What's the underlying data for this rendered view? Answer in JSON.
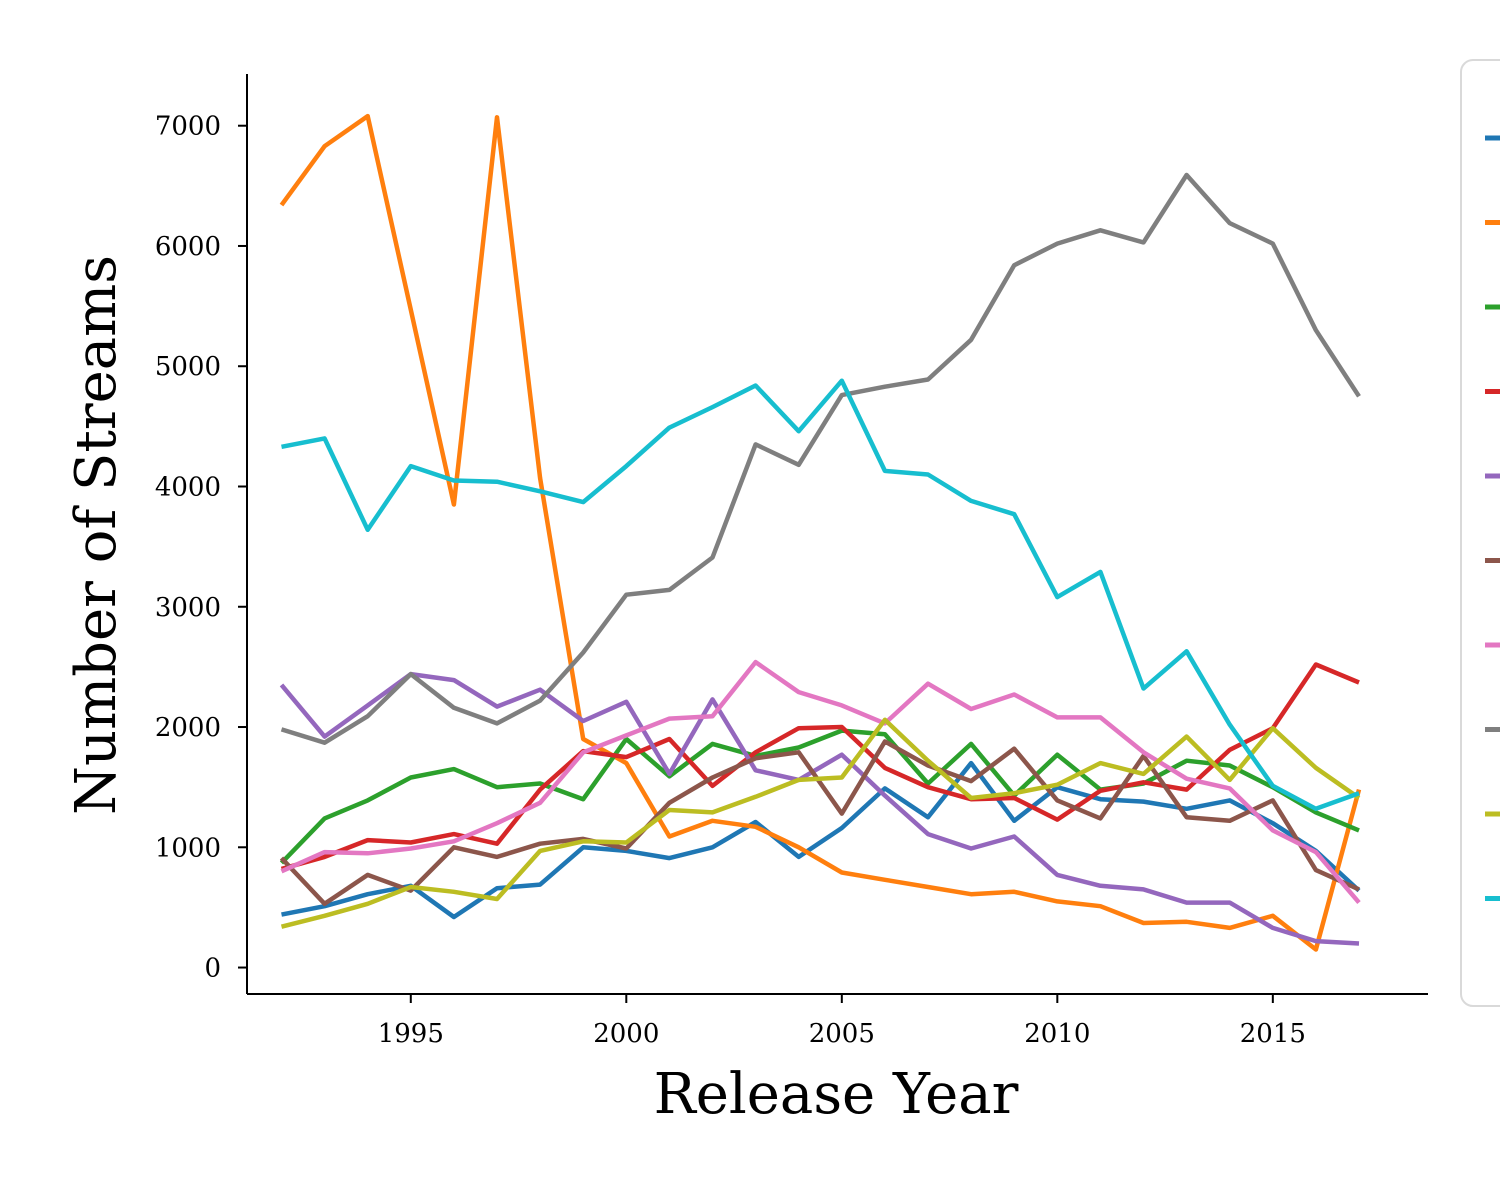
{
  "chart_data": {
    "type": "line",
    "title": "",
    "xlabel": "Release Year",
    "ylabel": "Number of Streams",
    "xlim": [
      1991.2,
      2018.6
    ],
    "ylim": [
      -220,
      7430
    ],
    "x_ticks": [
      1995,
      2000,
      2005,
      2010,
      2015
    ],
    "y_ticks": [
      0,
      1000,
      2000,
      3000,
      4000,
      5000,
      6000,
      7000
    ],
    "grid": false,
    "legend_placement": "right (clipped)",
    "x": [
      1992,
      1993,
      1994,
      1995,
      1996,
      1997,
      1998,
      1999,
      2000,
      2001,
      2002,
      2003,
      2004,
      2005,
      2006,
      2007,
      2008,
      2009,
      2010,
      2011,
      2012,
      2013,
      2014,
      2015,
      2016,
      2017
    ],
    "series": [
      {
        "color": "#1f77b4",
        "values": [
          440,
          510,
          610,
          680,
          420,
          660,
          690,
          1000,
          970,
          910,
          1000,
          1210,
          920,
          1160,
          1490,
          1250,
          1700,
          1220,
          1500,
          1400,
          1380,
          1320,
          1390,
          1200,
          970,
          640
        ]
      },
      {
        "color": "#ff7f0e",
        "values": [
          6340,
          6830,
          7080,
          5470,
          3850,
          7070,
          4070,
          1900,
          1700,
          1090,
          1220,
          1170,
          1000,
          790,
          730,
          670,
          610,
          630,
          550,
          510,
          370,
          380,
          330,
          430,
          150,
          1480
        ]
      },
      {
        "color": "#2ca02c",
        "values": [
          870,
          1240,
          1390,
          1580,
          1650,
          1500,
          1530,
          1400,
          1900,
          1590,
          1860,
          1760,
          1830,
          1970,
          1940,
          1530,
          1860,
          1430,
          1770,
          1480,
          1530,
          1720,
          1680,
          1500,
          1290,
          1140
        ]
      },
      {
        "color": "#d62728",
        "values": [
          820,
          920,
          1060,
          1040,
          1110,
          1030,
          1480,
          1800,
          1750,
          1900,
          1510,
          1790,
          1990,
          2000,
          1660,
          1500,
          1400,
          1410,
          1230,
          1470,
          1540,
          1480,
          1810,
          1990,
          2520,
          2370
        ]
      },
      {
        "color": "#9467bd",
        "values": [
          2350,
          1920,
          2180,
          2440,
          2390,
          2170,
          2310,
          2050,
          2210,
          1610,
          2230,
          1640,
          1560,
          1770,
          1430,
          1110,
          990,
          1090,
          770,
          680,
          650,
          540,
          540,
          330,
          220,
          200
        ]
      },
      {
        "color": "#8c564b",
        "values": [
          910,
          530,
          770,
          640,
          1000,
          920,
          1030,
          1070,
          990,
          1370,
          1580,
          1740,
          1790,
          1280,
          1880,
          1680,
          1550,
          1820,
          1390,
          1240,
          1760,
          1250,
          1220,
          1390,
          810,
          650
        ]
      },
      {
        "color": "#e377c2",
        "values": [
          800,
          960,
          950,
          990,
          1050,
          1200,
          1370,
          1790,
          1930,
          2070,
          2090,
          2540,
          2290,
          2180,
          2030,
          2360,
          2150,
          2270,
          2080,
          2080,
          1790,
          1570,
          1490,
          1140,
          960,
          540
        ]
      },
      {
        "color": "#7f7f7f",
        "values": [
          1980,
          1870,
          2090,
          2440,
          2160,
          2030,
          2220,
          2620,
          3100,
          3140,
          3410,
          4350,
          4180,
          4760,
          4830,
          4890,
          5220,
          5840,
          6020,
          6130,
          6030,
          6590,
          6190,
          6020,
          5300,
          4750
        ]
      },
      {
        "color": "#bcbd22",
        "values": [
          340,
          430,
          530,
          670,
          630,
          570,
          970,
          1050,
          1040,
          1310,
          1290,
          1420,
          1560,
          1580,
          2060,
          1720,
          1410,
          1450,
          1520,
          1700,
          1610,
          1920,
          1560,
          1990,
          1660,
          1410
        ]
      },
      {
        "color": "#17becf",
        "values": [
          4330,
          4400,
          3640,
          4170,
          4050,
          4040,
          3960,
          3870,
          4170,
          4490,
          4660,
          4840,
          4460,
          4880,
          4130,
          4100,
          3880,
          3770,
          3080,
          3290,
          2320,
          2630,
          2020,
          1510,
          1320,
          1450
        ]
      }
    ]
  }
}
